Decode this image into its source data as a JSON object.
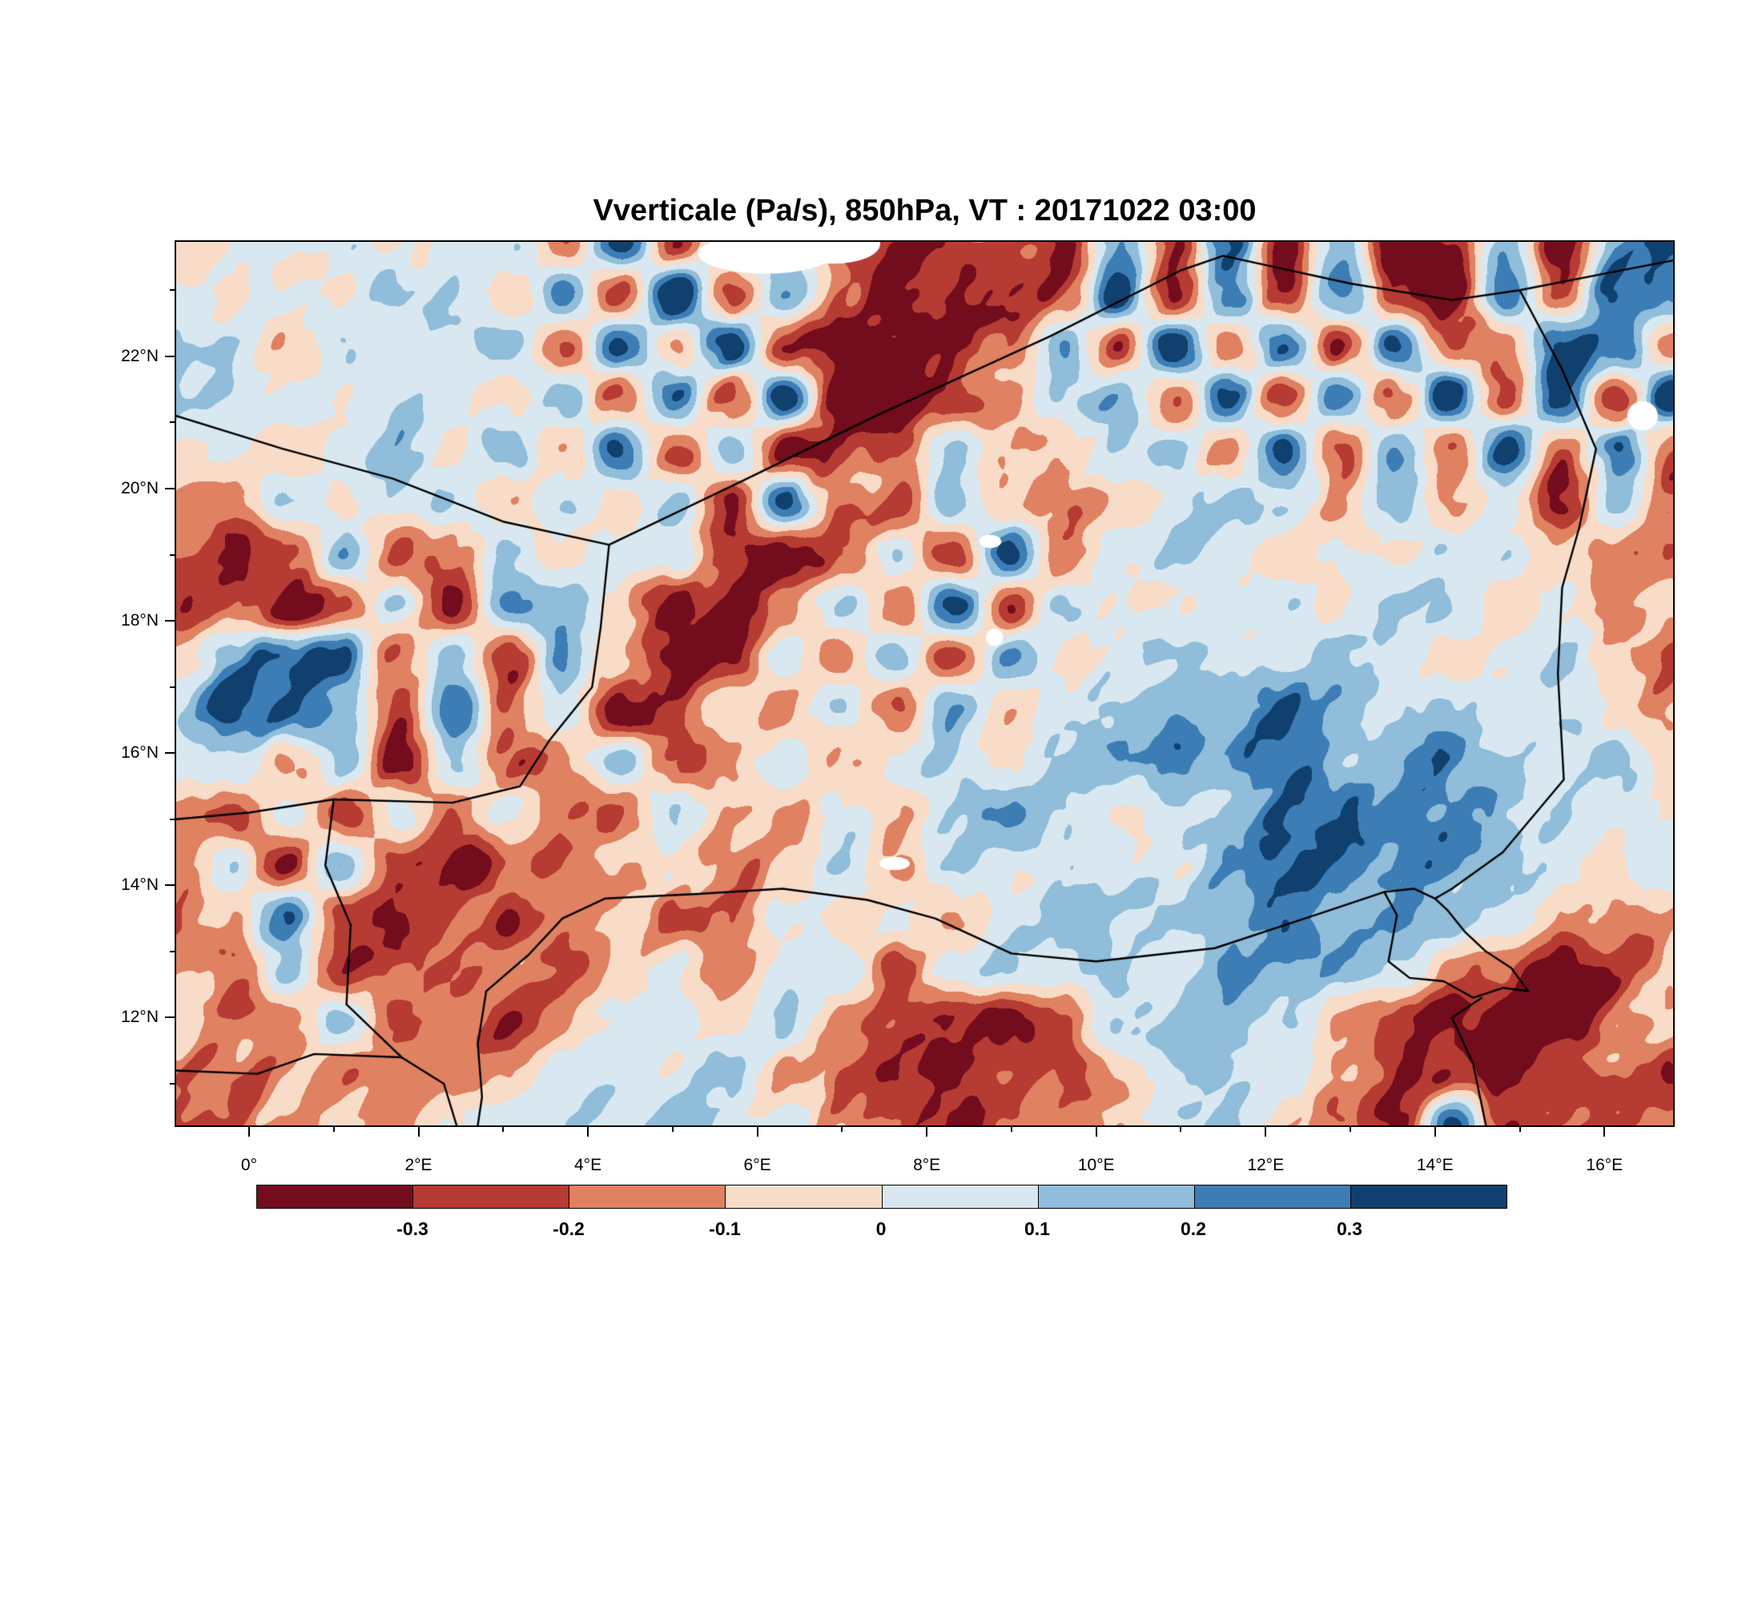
{
  "title": "Vverticale (Pa/s), 850hPa, VT : 20171022  03:00",
  "chart_data": {
    "type": "heatmap",
    "title": "Vverticale (Pa/s), 850hPa, VT : 20171022  03:00",
    "units": "Pa/s",
    "lon_range": [
      -0.86,
      16.81
    ],
    "lat_range": [
      10.37,
      23.73
    ],
    "lon_ticks": [
      {
        "value": 0,
        "label": "0°"
      },
      {
        "value": 2,
        "label": "2°E"
      },
      {
        "value": 4,
        "label": "4°E"
      },
      {
        "value": 6,
        "label": "6°E"
      },
      {
        "value": 8,
        "label": "8°E"
      },
      {
        "value": 10,
        "label": "10°E"
      },
      {
        "value": 12,
        "label": "12°E"
      },
      {
        "value": 14,
        "label": "14°E"
      },
      {
        "value": 16,
        "label": "16°E"
      }
    ],
    "lat_ticks": [
      {
        "value": 22,
        "label": "22°N"
      },
      {
        "value": 20,
        "label": "20°N"
      },
      {
        "value": 18,
        "label": "18°N"
      },
      {
        "value": 16,
        "label": "16°N"
      },
      {
        "value": 14,
        "label": "14°N"
      },
      {
        "value": 12,
        "label": "12°N"
      }
    ],
    "levels": [
      -0.3,
      -0.2,
      -0.1,
      0,
      0.1,
      0.2,
      0.3
    ],
    "colors": [
      "#730c1d",
      "#b63b32",
      "#e08162",
      "#f8dcc8",
      "#d9e8f0",
      "#8fbdda",
      "#3d7db5",
      "#10406e"
    ],
    "colorbar_labels": [
      "-0.3",
      "-0.2",
      "-0.1",
      "0",
      "0.1",
      "0.2",
      "0.3"
    ],
    "grid": {
      "cols": 28,
      "rows": 18,
      "values": [
        [
          0.05,
          0.05,
          0,
          0.1,
          -0.1,
          0.05,
          0.1,
          -0.2,
          0.3,
          -0.3,
          0.1,
          0.05,
          -0.3,
          -0.35,
          -0.3,
          -0.2,
          -0.35,
          0.2,
          -0.3,
          0.35,
          -0.25,
          0.3,
          -0.35,
          -0.2,
          0.25,
          -0.3,
          0.2,
          0.3
        ],
        [
          0.05,
          0,
          0.08,
          -0.05,
          0.1,
          0.05,
          -0.1,
          0.2,
          -0.3,
          0.35,
          -0.35,
          0.15,
          -0.2,
          -0.35,
          -0.3,
          -0.35,
          -0.25,
          0.3,
          -0.35,
          0.3,
          -0.3,
          0.35,
          -0.25,
          -0.35,
          0.3,
          -0.2,
          0.35,
          0.25
        ],
        [
          0.08,
          0.05,
          -0.05,
          0.1,
          0,
          0.05,
          0.15,
          -0.25,
          0.3,
          -0.2,
          0.35,
          -0.3,
          -0.35,
          -0.3,
          -0.35,
          -0.3,
          0.1,
          -0.3,
          0.35,
          -0.3,
          0.3,
          -0.35,
          0.3,
          -0.3,
          -0.2,
          0.35,
          0.3,
          -0.2
        ],
        [
          0.05,
          0.1,
          0.05,
          0,
          0.1,
          0.05,
          -0.1,
          0.2,
          -0.3,
          0.25,
          -0.35,
          0.3,
          -0.3,
          -0.35,
          -0.35,
          -0.2,
          0.05,
          0.1,
          -0.25,
          0.3,
          -0.35,
          0.25,
          -0.3,
          0.35,
          -0.25,
          0.3,
          -0.35,
          0.35
        ],
        [
          0,
          0.05,
          -0.1,
          0.05,
          0.1,
          -0.05,
          0.15,
          -0.2,
          0.25,
          -0.3,
          0.2,
          -0.35,
          -0.3,
          -0.25,
          0.1,
          -0.1,
          -0.2,
          0.05,
          0.1,
          -0.2,
          0.25,
          -0.3,
          0.2,
          -0.25,
          0.3,
          -0.2,
          0.25,
          -0.3
        ],
        [
          -0.05,
          -0.15,
          0.1,
          -0.05,
          0.05,
          0.1,
          -0.15,
          0.05,
          -0.1,
          0.15,
          -0.25,
          0.3,
          -0.35,
          -0.3,
          0.2,
          -0.15,
          -0.25,
          -0.1,
          0.05,
          0.1,
          0.05,
          -0.1,
          0.1,
          -0.15,
          0.05,
          -0.2,
          0.1,
          -0.25
        ],
        [
          -0.2,
          -0.3,
          -0.25,
          0.15,
          -0.3,
          -0.2,
          0.1,
          -0.1,
          0.05,
          0.1,
          -0.3,
          -0.35,
          -0.2,
          0.1,
          -0.3,
          0.3,
          -0.2,
          0.05,
          0.1,
          0.05,
          -0.05,
          0.05,
          -0.1,
          0.05,
          0.1,
          -0.05,
          -0.15,
          -0.25
        ],
        [
          -0.3,
          -0.2,
          -0.35,
          -0.25,
          0.1,
          -0.35,
          0.2,
          0.1,
          -0.05,
          -0.35,
          -0.3,
          -0.1,
          0.15,
          -0.2,
          0.35,
          -0.3,
          0.1,
          0.05,
          -0.05,
          0.05,
          0.1,
          -0.05,
          0.05,
          0.1,
          -0.05,
          0.05,
          -0.2,
          -0.1
        ],
        [
          -0.1,
          0.2,
          0.35,
          0.3,
          -0.2,
          0.1,
          -0.3,
          0.2,
          -0.1,
          -0.35,
          -0.2,
          0.1,
          -0.15,
          0.2,
          -0.25,
          0.15,
          -0.05,
          0.05,
          0.1,
          0.05,
          0.05,
          0.1,
          0.05,
          -0.05,
          0.05,
          0.1,
          -0.1,
          -0.2
        ],
        [
          0.15,
          0.35,
          0.3,
          0.15,
          -0.25,
          0.3,
          -0.2,
          0.1,
          -0.35,
          -0.25,
          0.05,
          -0.15,
          0.1,
          -0.2,
          0.15,
          -0.1,
          0.05,
          0.1,
          0.2,
          0.1,
          0.3,
          0.15,
          0.05,
          0.1,
          0.05,
          0.1,
          -0.05,
          -0.15
        ],
        [
          0.05,
          0.1,
          -0.15,
          0.2,
          -0.3,
          0.15,
          -0.25,
          -0.1,
          0.2,
          -0.25,
          -0.05,
          0.1,
          -0.15,
          0.05,
          0.1,
          -0.05,
          0.1,
          0.25,
          0.3,
          0.2,
          0.25,
          0.1,
          0.15,
          0.2,
          0.1,
          0.05,
          0.1,
          -0.1
        ],
        [
          -0.1,
          -0.2,
          0.1,
          -0.25,
          0.15,
          -0.2,
          0.1,
          -0.15,
          -0.25,
          0.1,
          -0.05,
          -0.15,
          0.05,
          -0.1,
          0.05,
          0.15,
          0.1,
          0.05,
          0.15,
          0.1,
          0.2,
          0.3,
          0.2,
          0.25,
          0.15,
          0.1,
          0.05,
          -0.05
        ],
        [
          -0.15,
          0.1,
          -0.3,
          0.2,
          -0.2,
          -0.3,
          -0.15,
          -0.25,
          -0.1,
          0.05,
          -0.15,
          -0.05,
          0.1,
          -0.1,
          0.1,
          0.05,
          0.15,
          0.1,
          0.05,
          0.15,
          0.25,
          0.3,
          0.25,
          0.3,
          0.2,
          0.1,
          -0.05,
          0.05
        ],
        [
          -0.2,
          -0.1,
          0.3,
          -0.2,
          -0.3,
          -0.2,
          -0.25,
          -0.15,
          -0.05,
          -0.2,
          -0.1,
          0.05,
          -0.05,
          0.1,
          -0.1,
          0.1,
          0.15,
          0.1,
          0.15,
          0.1,
          0.2,
          0.15,
          0.25,
          0.15,
          0.1,
          -0.1,
          -0.15,
          -0.05
        ],
        [
          -0.15,
          -0.25,
          0.15,
          -0.3,
          -0.2,
          -0.25,
          -0.1,
          -0.2,
          -0.1,
          0.05,
          -0.1,
          0.05,
          0.1,
          -0.2,
          0.05,
          0.1,
          0.05,
          0.15,
          0.1,
          0.15,
          0.1,
          0.15,
          0.1,
          -0.1,
          -0.2,
          -0.3,
          -0.2,
          -0.1
        ],
        [
          -0.1,
          -0.3,
          -0.2,
          0.1,
          -0.25,
          -0.15,
          -0.2,
          -0.1,
          0.05,
          0.1,
          -0.05,
          0.1,
          -0.15,
          -0.3,
          -0.25,
          -0.35,
          -0.2,
          0.1,
          0.05,
          0.1,
          0.05,
          -0.15,
          -0.25,
          -0.35,
          -0.3,
          -0.35,
          -0.25,
          -0.15
        ],
        [
          -0.3,
          -0.35,
          -0.15,
          -0.2,
          -0.1,
          -0.15,
          -0.05,
          0.05,
          0.1,
          0.05,
          0.1,
          -0.1,
          -0.25,
          -0.35,
          -0.3,
          -0.2,
          -0.3,
          -0.15,
          0.05,
          0.1,
          -0.05,
          -0.15,
          -0.3,
          -0.2,
          -0.35,
          -0.25,
          -0.2,
          -0.3
        ],
        [
          -0.35,
          -0.25,
          -0.2,
          -0.1,
          -0.15,
          -0.05,
          0.05,
          0.1,
          0.05,
          0.1,
          0.05,
          -0.05,
          -0.2,
          -0.3,
          -0.35,
          -0.25,
          -0.15,
          -0.1,
          0.05,
          0.05,
          -0.1,
          -0.25,
          -0.35,
          0.3,
          -0.3,
          -0.2,
          -0.25,
          -0.2
        ]
      ]
    },
    "borders": [
      [
        [
          -0.86,
          21.1
        ],
        [
          0.4,
          20.6
        ],
        [
          1.7,
          20.15
        ],
        [
          3.0,
          19.5
        ],
        [
          4.25,
          19.15
        ]
      ],
      [
        [
          4.25,
          19.15
        ],
        [
          4.15,
          17.9
        ],
        [
          4.05,
          17.0
        ],
        [
          3.55,
          16.2
        ],
        [
          3.2,
          15.5
        ],
        [
          2.4,
          15.25
        ],
        [
          1.0,
          15.3
        ],
        [
          0.0,
          15.1
        ],
        [
          -0.86,
          15.0
        ]
      ],
      [
        [
          4.25,
          19.15
        ],
        [
          5.8,
          20.1
        ],
        [
          7.4,
          21.1
        ],
        [
          9.45,
          22.3
        ],
        [
          11.0,
          23.3
        ],
        [
          11.5,
          23.52
        ]
      ],
      [
        [
          11.5,
          23.52
        ],
        [
          13.0,
          23.1
        ],
        [
          14.2,
          22.85
        ],
        [
          15.0,
          23.0
        ],
        [
          16.0,
          23.25
        ],
        [
          16.81,
          23.45
        ]
      ],
      [
        [
          15.0,
          23.0
        ],
        [
          15.5,
          21.8
        ],
        [
          15.9,
          20.6
        ],
        [
          15.7,
          19.4
        ],
        [
          15.5,
          18.5
        ],
        [
          15.45,
          17.2
        ],
        [
          15.52,
          15.6
        ],
        [
          14.8,
          14.5
        ],
        [
          14.2,
          13.95
        ],
        [
          14.0,
          13.8
        ]
      ],
      [
        [
          2.8,
          12.4
        ],
        [
          3.3,
          12.95
        ],
        [
          3.7,
          13.5
        ],
        [
          4.2,
          13.8
        ],
        [
          5.3,
          13.87
        ],
        [
          6.3,
          13.95
        ],
        [
          7.3,
          13.78
        ],
        [
          8.1,
          13.5
        ],
        [
          9.0,
          12.97
        ],
        [
          10.0,
          12.85
        ],
        [
          11.4,
          13.05
        ],
        [
          12.7,
          13.6
        ],
        [
          13.4,
          13.9
        ]
      ],
      [
        [
          1.0,
          15.3
        ],
        [
          0.9,
          14.3
        ],
        [
          1.2,
          13.4
        ],
        [
          1.15,
          12.2
        ],
        [
          1.8,
          11.4
        ],
        [
          2.3,
          11.0
        ],
        [
          2.45,
          10.37
        ]
      ],
      [
        [
          2.8,
          12.4
        ],
        [
          2.7,
          11.6
        ],
        [
          2.75,
          10.8
        ],
        [
          2.7,
          10.37
        ]
      ],
      [
        [
          -0.86,
          11.2
        ],
        [
          0.1,
          11.15
        ],
        [
          0.77,
          11.45
        ],
        [
          1.8,
          11.4
        ]
      ],
      [
        [
          13.4,
          13.9
        ],
        [
          13.55,
          13.55
        ],
        [
          13.5,
          13.2
        ],
        [
          13.45,
          12.85
        ],
        [
          13.7,
          12.6
        ],
        [
          14.1,
          12.55
        ],
        [
          14.45,
          12.3
        ],
        [
          14.8,
          12.45
        ],
        [
          15.1,
          12.4
        ],
        [
          14.9,
          12.75
        ],
        [
          14.6,
          13.0
        ],
        [
          14.35,
          13.3
        ],
        [
          14.15,
          13.62
        ],
        [
          14.0,
          13.8
        ],
        [
          13.75,
          13.95
        ],
        [
          13.4,
          13.9
        ]
      ],
      [
        [
          14.55,
          12.3
        ],
        [
          14.2,
          12.0
        ],
        [
          14.45,
          11.3
        ],
        [
          14.6,
          10.37
        ]
      ]
    ],
    "masked": [
      {
        "lon": 6.1,
        "lat": 23.55,
        "rx": 0.8,
        "ry": 0.3
      },
      {
        "lon": 6.9,
        "lat": 23.7,
        "rx": 0.55,
        "ry": 0.3
      },
      {
        "lon": 8.75,
        "lat": 19.2,
        "rx": 0.13,
        "ry": 0.1
      },
      {
        "lon": 8.8,
        "lat": 17.75,
        "rx": 0.1,
        "ry": 0.13
      },
      {
        "lon": 7.62,
        "lat": 14.33,
        "rx": 0.18,
        "ry": 0.1
      },
      {
        "lon": 16.45,
        "lat": 21.1,
        "rx": 0.18,
        "ry": 0.22
      }
    ]
  }
}
